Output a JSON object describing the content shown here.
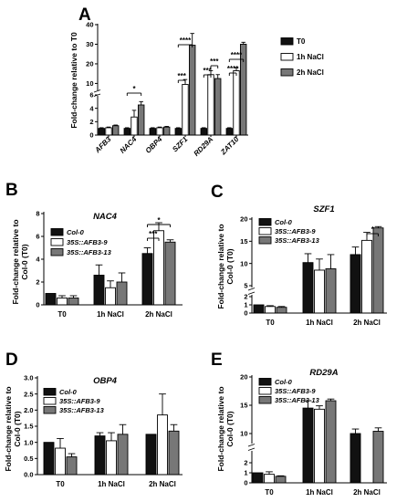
{
  "colors": {
    "T0": "#111111",
    "1h NaCl": "#ffffff",
    "2h NaCl": "#777777",
    "axis": "#000000"
  },
  "chart_data": [
    {
      "panel": "A",
      "type": "bar",
      "title": "",
      "ylabel": "Fold-change relative to T0",
      "xlabel": "",
      "categories": [
        "AFB3",
        "NAC4",
        "OBP4",
        "SZF1",
        "RD29A",
        "ZAT10"
      ],
      "series": [
        {
          "name": "T0",
          "color": "#111111",
          "values": [
            1,
            1,
            1,
            1,
            1,
            1
          ],
          "errors": [
            0.1,
            0.1,
            0.1,
            0.1,
            0.1,
            0.1
          ]
        },
        {
          "name": "1h NaCl",
          "color": "#ffffff",
          "values": [
            1.1,
            2.7,
            1.1,
            9.5,
            14.5,
            16.5
          ],
          "errors": [
            0.1,
            1.0,
            0.1,
            2.5,
            2.0,
            1.5
          ]
        },
        {
          "name": "2h NaCl",
          "color": "#777777",
          "values": [
            1.4,
            4.5,
            1.2,
            29.5,
            12.5,
            30
          ],
          "errors": [
            0.1,
            0.5,
            0.1,
            6,
            2,
            1
          ]
        }
      ],
      "y_axis": {
        "lower_ticks": [
          "0",
          "2",
          "4",
          "6"
        ],
        "upper_ticks": [
          "10",
          "20",
          "30",
          "40"
        ],
        "broken": true,
        "ylim": [
          0,
          40
        ]
      },
      "significance": [
        {
          "category": "NAC4",
          "label": "*"
        },
        {
          "category": "SZF1",
          "label": "***"
        },
        {
          "category": "SZF1",
          "label": "****"
        },
        {
          "category": "RD29A",
          "label": "***"
        },
        {
          "category": "RD29A",
          "label": "***"
        },
        {
          "category": "ZAT10",
          "label": "****"
        },
        {
          "category": "ZAT10",
          "label": "****"
        }
      ],
      "legend": [
        "T0",
        "1h NaCl",
        "2h NaCl"
      ],
      "legend_position": "right"
    },
    {
      "panel": "B",
      "type": "bar",
      "title": "NAC4",
      "ylabel": "Fold-change relative to Col-0 (T0)",
      "categories": [
        "T0",
        "1h NaCl",
        "2h NaCl"
      ],
      "series": [
        {
          "name": "Col-0",
          "color": "#111111",
          "values": [
            1.0,
            2.6,
            4.5
          ],
          "errors": [
            0.0,
            0.9,
            0.5
          ]
        },
        {
          "name": "35S::AFB3-9",
          "color": "#ffffff",
          "values": [
            0.6,
            1.5,
            6.5
          ],
          "errors": [
            0.2,
            0.6,
            0.7
          ]
        },
        {
          "name": "35S::AFB3-13",
          "color": "#777777",
          "values": [
            0.6,
            2.0,
            5.5
          ],
          "errors": [
            0.2,
            0.8,
            0.2
          ]
        }
      ],
      "yticks": [
        "0",
        "2",
        "4",
        "6",
        "8"
      ],
      "ylim": [
        0,
        8
      ],
      "significance": [
        {
          "category": "2h NaCl",
          "label": "***"
        },
        {
          "category": "2h NaCl",
          "label": "*"
        }
      ],
      "legend_position": "top-left"
    },
    {
      "panel": "C",
      "type": "bar",
      "title": "SZF1",
      "ylabel": "Fold-change relative to Col-0 (T0)",
      "categories": [
        "T0",
        "1h NaCl",
        "2h NaCl"
      ],
      "series": [
        {
          "name": "Col-0",
          "color": "#111111",
          "values": [
            1.0,
            10.2,
            12.0
          ],
          "errors": [
            0.0,
            2.0,
            1.7
          ]
        },
        {
          "name": "35S::AFB3-9",
          "color": "#ffffff",
          "values": [
            0.8,
            8.5,
            15.2
          ],
          "errors": [
            0.1,
            2.5,
            1.8
          ]
        },
        {
          "name": "35S::AFB3-13",
          "color": "#777777",
          "values": [
            0.7,
            8.8,
            18.0
          ],
          "errors": [
            0.1,
            3.2,
            0.3
          ]
        }
      ],
      "y_axis": {
        "lower_ticks": [
          "0",
          "1",
          "2"
        ],
        "upper_ticks": [
          "5",
          "10",
          "15",
          "20"
        ],
        "broken": true,
        "ylim": [
          0,
          20
        ]
      },
      "significance": [
        {
          "category": "2h NaCl",
          "label": "*"
        }
      ],
      "legend_position": "top-left"
    },
    {
      "panel": "D",
      "type": "bar",
      "title": "OBP4",
      "ylabel": "Fold-change relative to Col-0 (T0)",
      "categories": [
        "T0",
        "1h NaCl",
        "2h NaCl"
      ],
      "series": [
        {
          "name": "Col-0",
          "color": "#111111",
          "values": [
            1.0,
            1.2,
            1.25
          ],
          "errors": [
            0.0,
            0.1,
            0.0
          ]
        },
        {
          "name": "35S::AFB3-9",
          "color": "#ffffff",
          "values": [
            0.82,
            1.05,
            1.85
          ],
          "errors": [
            0.3,
            0.25,
            0.65
          ]
        },
        {
          "name": "35S::AFB3-13",
          "color": "#777777",
          "values": [
            0.55,
            1.25,
            1.35
          ],
          "errors": [
            0.1,
            0.3,
            0.2
          ]
        }
      ],
      "yticks": [
        "0.0",
        "0.5",
        "1.0",
        "1.5",
        "2.0",
        "2.5",
        "3.0"
      ],
      "ylim": [
        0,
        3
      ],
      "legend_position": "top-left"
    },
    {
      "panel": "E",
      "type": "bar",
      "title": "RD29A",
      "ylabel": "Fold-change relative to Col-0 (T0)",
      "categories": [
        "T0",
        "1h NaCl",
        "2h NaCl"
      ],
      "series": [
        {
          "name": "Col-0",
          "color": "#111111",
          "values": [
            1.0,
            14.5,
            10.0
          ],
          "errors": [
            0.0,
            1.3,
            0.8
          ]
        },
        {
          "name": "35S::AFB3-9",
          "color": "#ffffff",
          "values": [
            0.85,
            14.3,
            9.2
          ],
          "errors": [
            0.25,
            0.6,
            0.6
          ]
        },
        {
          "name": "35S::AFB3-13",
          "color": "#777777",
          "values": [
            0.65,
            15.8,
            10.4
          ],
          "errors": [
            0.05,
            0.3,
            0.6
          ]
        }
      ],
      "y_axis": {
        "lower_ticks": [
          "0",
          "1",
          "2"
        ],
        "upper_ticks": [
          "10",
          "15",
          "20"
        ],
        "broken": true,
        "ylim": [
          0,
          20
        ]
      },
      "legend_position": "top-left"
    }
  ],
  "labels": {
    "panels": [
      "A",
      "B",
      "C",
      "D",
      "E"
    ],
    "legendA": [
      "T0",
      "1h NaCl",
      "2h NaCl"
    ],
    "legendGenotypes": [
      "Col-0",
      "35S::AFB3-9",
      "35S::AFB3-13"
    ],
    "ylabA": "Fold-change relative to T0",
    "ylabBline1": "Fold-change relative to",
    "ylabBline2": "Col-0 (T0)"
  }
}
